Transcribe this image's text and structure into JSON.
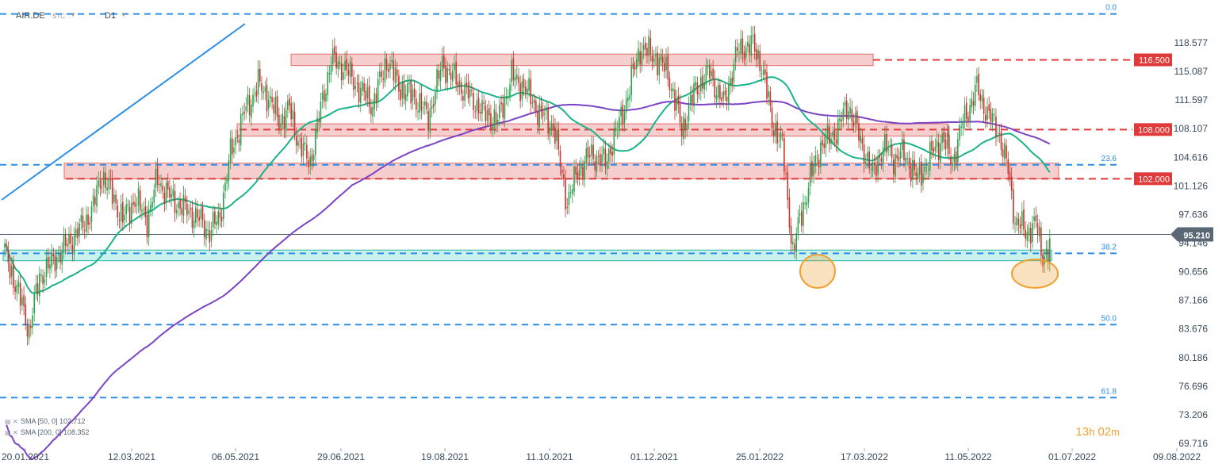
{
  "header": {
    "symbol": "AIR.DE",
    "source": "STC",
    "interval": "D1"
  },
  "legend": {
    "sma50": "SMA  [50,  0]  102.712",
    "sma200": "SMA  [200,  0]  108.352"
  },
  "timer": {
    "hours": "13",
    "h_unit": "h",
    "minutes": "02",
    "m_unit": "m"
  },
  "chart_data": {
    "type": "candlestick",
    "symbol": "AIR.DE",
    "interval": "D1",
    "y_axis_ticks": [
      118.577,
      115.087,
      111.597,
      108.107,
      104.616,
      101.126,
      97.636,
      94.146,
      90.656,
      87.166,
      83.676,
      80.186,
      76.696,
      73.206,
      69.716
    ],
    "x_axis_ticks": [
      "20.01.2021",
      "12.03.2021",
      "06.05.2021",
      "29.06.2021",
      "19.08.2021",
      "11.10.2021",
      "01.12.2021",
      "25.01.2022",
      "17.03.2022",
      "11.05.2022",
      "01.07.2022",
      "09.08.2022"
    ],
    "last_price": 95.21,
    "last_price_label": "95.210",
    "horizontal_levels": [
      {
        "value": 116.5,
        "label": "116.500",
        "color": "#e03a3a"
      },
      {
        "value": 108.0,
        "label": "108.000",
        "color": "#e03a3a"
      },
      {
        "value": 102.0,
        "label": "102.000",
        "color": "#e03a3a"
      }
    ],
    "fibonacci_levels": [
      {
        "label": "0.0",
        "value": 122.1
      },
      {
        "label": "23.6",
        "value": 103.7
      },
      {
        "label": "38.2",
        "value": 92.9
      },
      {
        "label": "50.0",
        "value": 84.2
      },
      {
        "label": "61.8",
        "value": 75.3
      }
    ],
    "zones": [
      {
        "name": "resistance-116",
        "from": 115.8,
        "to": 117.2,
        "color": "#f6c6c6"
      },
      {
        "name": "resistance-108",
        "from": 107.2,
        "to": 108.7,
        "color": "#f6c6c6"
      },
      {
        "name": "resistance-102",
        "from": 102.0,
        "to": 103.9,
        "color": "#f6c6c6"
      },
      {
        "name": "support-93",
        "from": 92.0,
        "to": 93.3,
        "color": "#bff0ea"
      }
    ],
    "sma": [
      {
        "name": "SMA 50",
        "period": 50,
        "last": 102.712,
        "color": "#1ab38a"
      },
      {
        "name": "SMA 200",
        "period": 200,
        "last": 108.352,
        "color": "#7a44c4"
      }
    ],
    "colors": {
      "up": "#2aa14a",
      "down": "#c8322c",
      "grid_dash": "#2a8ee8",
      "trendline": "#2a8ee8",
      "highlight": "#f0a030",
      "price_tag": "#5a6775"
    }
  }
}
